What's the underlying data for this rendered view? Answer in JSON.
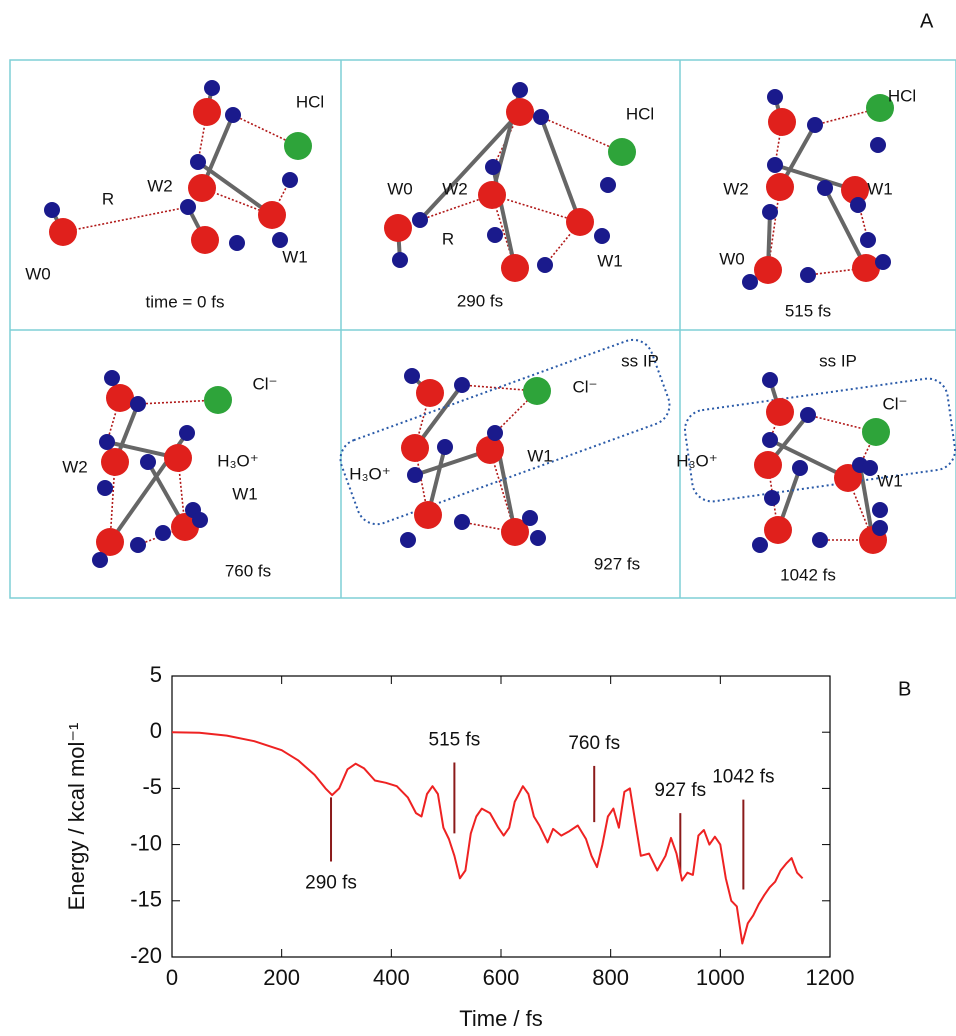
{
  "panel_a": {
    "label": "A",
    "snapshots": [
      {
        "labels": [
          "HCl",
          "W2",
          "R",
          "W0",
          "W1"
        ],
        "time": "time = 0 fs"
      },
      {
        "labels": [
          "HCl",
          "W0",
          "W2",
          "R",
          "W1"
        ],
        "time": "290 fs"
      },
      {
        "labels": [
          "HCl",
          "W2",
          "W1",
          "W0"
        ],
        "time": "515 fs"
      },
      {
        "labels": [
          "Cl⁻",
          "W2",
          "H₃O⁺",
          "W1"
        ],
        "time": "760 fs"
      },
      {
        "labels": [
          "ss IP",
          "Cl⁻",
          "H₃O⁺",
          "W1"
        ],
        "time": "927 fs"
      },
      {
        "labels": [
          "ss IP",
          "Cl⁻",
          "H₃O⁺",
          "W1"
        ],
        "time": "1042 fs"
      }
    ]
  },
  "chart_data": {
    "type": "line",
    "panel_label": "B",
    "xlabel": "Time / fs",
    "ylabel": "Energy / kcal mol⁻¹",
    "x": [
      0,
      50,
      100,
      150,
      200,
      230,
      260,
      280,
      292,
      305,
      320,
      335,
      350,
      370,
      390,
      410,
      430,
      445,
      455,
      465,
      475,
      485,
      495,
      505,
      515,
      525,
      535,
      545,
      555,
      565,
      580,
      595,
      605,
      615,
      625,
      640,
      650,
      660,
      670,
      685,
      695,
      710,
      725,
      740,
      755,
      765,
      775,
      785,
      795,
      805,
      815,
      825,
      835,
      845,
      855,
      870,
      885,
      900,
      910,
      920,
      930,
      940,
      950,
      960,
      970,
      980,
      990,
      1000,
      1010,
      1020,
      1030,
      1040,
      1050,
      1060,
      1070,
      1080,
      1090,
      1100,
      1110,
      1120,
      1130,
      1140,
      1150
    ],
    "values": [
      0,
      -0.05,
      -0.3,
      -0.8,
      -1.6,
      -2.5,
      -3.8,
      -5,
      -5.6,
      -5,
      -3.3,
      -2.8,
      -3.2,
      -4.3,
      -4.5,
      -4.8,
      -5.8,
      -7.2,
      -7.5,
      -5.5,
      -4.8,
      -5.5,
      -8.5,
      -9.5,
      -11,
      -13,
      -12.3,
      -9,
      -7.5,
      -6.8,
      -7.2,
      -8.5,
      -9.2,
      -8.5,
      -6.2,
      -4.8,
      -5.5,
      -7.5,
      -8.3,
      -9.8,
      -8.6,
      -9.2,
      -8.8,
      -8.3,
      -9.5,
      -11,
      -12,
      -10,
      -7.5,
      -6.8,
      -8.5,
      -5.3,
      -5,
      -8,
      -11,
      -10.8,
      -12.3,
      -11,
      -9.4,
      -10.8,
      -13.2,
      -12.5,
      -12.7,
      -9.2,
      -8.7,
      -10,
      -9.3,
      -10,
      -13,
      -15,
      -15.5,
      -18.8,
      -17,
      -16.3,
      -15.3,
      -14.5,
      -13.8,
      -13.3,
      -12.3,
      -11.7,
      -11.2,
      -12.5,
      -13
    ],
    "color": "#ee2222",
    "xlim": [
      0,
      1200
    ],
    "xticks": [
      0,
      200,
      400,
      600,
      800,
      1000,
      1200
    ],
    "ylim": [
      -20,
      5
    ],
    "yticks": [
      -20,
      -15,
      -10,
      -5,
      0,
      5
    ],
    "grid": false,
    "annotations": [
      {
        "text": "290 fs",
        "x": 290,
        "y": [
          -11.5,
          -5.8
        ],
        "position": "below"
      },
      {
        "text": "515 fs",
        "x": 515,
        "y": [
          -9,
          -2.7
        ],
        "position": "above"
      },
      {
        "text": "760 fs",
        "x": 770,
        "y": [
          -8,
          -3
        ],
        "position": "above"
      },
      {
        "text": "927 fs",
        "x": 927,
        "y": [
          -12.5,
          -7.2
        ],
        "position": "above"
      },
      {
        "text": "1042 fs",
        "x": 1042,
        "y": [
          -14,
          -6
        ],
        "position": "above"
      }
    ]
  }
}
